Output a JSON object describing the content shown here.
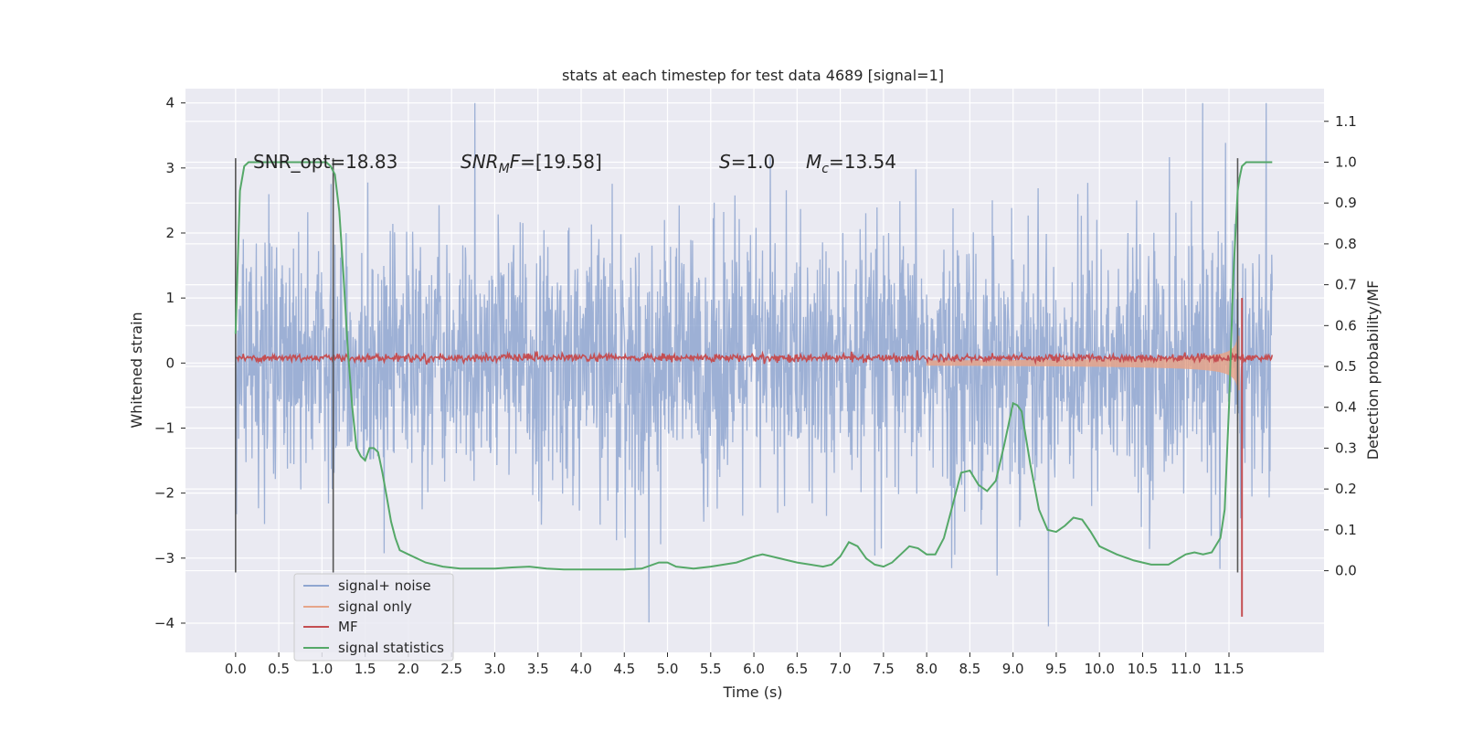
{
  "chart_data": {
    "type": "line",
    "title": "stats at each timestep for test data 4689 [signal=1]",
    "xlabel": "Time (s)",
    "ylabel": "Whitened strain",
    "ylabel_right": "Detection probability/MF",
    "xlim": [
      -0.58,
      12.6
    ],
    "ylim": [
      -4.45,
      4.22
    ],
    "ylim_right": [
      -0.2,
      1.18
    ],
    "x_ticks": [
      "0.0",
      "0.5",
      "1.0",
      "1.5",
      "2.0",
      "2.5",
      "3.0",
      "3.5",
      "4.0",
      "4.5",
      "5.0",
      "5.5",
      "6.0",
      "6.5",
      "7.0",
      "7.5",
      "8.0",
      "8.5",
      "9.0",
      "9.5",
      "10.0",
      "10.5",
      "11.0",
      "11.5"
    ],
    "y_ticks": [
      "4",
      "3",
      "2",
      "1",
      "0",
      "−1",
      "−2",
      "−3",
      "−4"
    ],
    "y_ticks_right": [
      "1.1",
      "1.0",
      "0.9",
      "0.8",
      "0.7",
      "0.6",
      "0.5",
      "0.4",
      "0.3",
      "0.2",
      "0.1",
      "0.0"
    ],
    "grid": true,
    "legend_position": "lower-left",
    "annotations": {
      "snr_opt": "SNR_opt=18.83",
      "snr_mf_prefix": "SNR",
      "snr_mf_sub": "M",
      "snr_mf_suffix": "F=[19.58]",
      "s_var": "S",
      "s_value": "=1.0",
      "mc_var": "M",
      "mc_sub": "c",
      "mc_value": "=13.54"
    },
    "vertical_markers_x": [
      0.0,
      1.13,
      11.6
    ],
    "series": [
      {
        "name": "signal+ noise",
        "color": "#8fa6d0",
        "axis": "left",
        "description_values": {
          "x_range": [
            0.0,
            12.0
          ],
          "typical_envelope": [
            -2.1,
            2.4
          ],
          "extreme_max": 4.0,
          "extreme_min": -4.05
        }
      },
      {
        "name": "signal only",
        "color": "#e6a58a",
        "axis": "left",
        "chirp": {
          "start_x": 8.0,
          "merger_x": 11.62,
          "peak_amplitude": 1.3
        }
      },
      {
        "name": "MF",
        "color": "#c44e52",
        "axis": "left",
        "baseline": 0.08,
        "peak": {
          "x": 11.65,
          "value": 1.0,
          "min": -3.9
        }
      },
      {
        "name": "signal statistics",
        "color": "#55a868",
        "axis": "right",
        "x": [
          0.0,
          0.05,
          0.1,
          0.15,
          0.2,
          0.3,
          0.5,
          0.7,
          0.9,
          1.0,
          1.05,
          1.1,
          1.15,
          1.2,
          1.25,
          1.3,
          1.35,
          1.4,
          1.45,
          1.5,
          1.55,
          1.6,
          1.65,
          1.7,
          1.75,
          1.8,
          1.85,
          1.9,
          2.0,
          2.2,
          2.4,
          2.6,
          2.8,
          3.0,
          3.2,
          3.4,
          3.6,
          3.8,
          4.0,
          4.2,
          4.5,
          4.7,
          4.9,
          5.0,
          5.1,
          5.3,
          5.5,
          5.8,
          6.0,
          6.1,
          6.2,
          6.5,
          6.8,
          6.9,
          7.0,
          7.1,
          7.2,
          7.3,
          7.4,
          7.5,
          7.6,
          7.7,
          7.8,
          7.9,
          8.0,
          8.1,
          8.2,
          8.3,
          8.4,
          8.5,
          8.6,
          8.7,
          8.8,
          8.9,
          9.0,
          9.05,
          9.1,
          9.2,
          9.3,
          9.4,
          9.5,
          9.6,
          9.7,
          9.8,
          9.9,
          10.0,
          10.2,
          10.4,
          10.6,
          10.8,
          11.0,
          11.1,
          11.2,
          11.3,
          11.4,
          11.45,
          11.5,
          11.55,
          11.6,
          11.62,
          11.65,
          11.7,
          11.75,
          11.8,
          11.9,
          12.0
        ],
        "values": [
          0.58,
          0.93,
          0.99,
          1.0,
          1.0,
          1.0,
          1.0,
          1.0,
          1.0,
          1.0,
          1.0,
          0.99,
          0.97,
          0.88,
          0.72,
          0.54,
          0.4,
          0.3,
          0.28,
          0.27,
          0.3,
          0.3,
          0.29,
          0.24,
          0.18,
          0.12,
          0.08,
          0.05,
          0.04,
          0.02,
          0.01,
          0.005,
          0.005,
          0.005,
          0.008,
          0.01,
          0.005,
          0.003,
          0.003,
          0.003,
          0.003,
          0.005,
          0.02,
          0.02,
          0.01,
          0.005,
          0.01,
          0.02,
          0.035,
          0.04,
          0.035,
          0.02,
          0.01,
          0.015,
          0.035,
          0.07,
          0.06,
          0.03,
          0.015,
          0.01,
          0.02,
          0.04,
          0.06,
          0.055,
          0.04,
          0.04,
          0.08,
          0.16,
          0.24,
          0.245,
          0.21,
          0.195,
          0.22,
          0.31,
          0.41,
          0.405,
          0.39,
          0.26,
          0.15,
          0.1,
          0.095,
          0.11,
          0.13,
          0.125,
          0.095,
          0.06,
          0.04,
          0.025,
          0.015,
          0.015,
          0.04,
          0.045,
          0.04,
          0.045,
          0.08,
          0.15,
          0.4,
          0.72,
          0.93,
          0.96,
          0.99,
          1.0,
          1.0,
          1.0,
          1.0,
          1.0
        ]
      }
    ]
  }
}
